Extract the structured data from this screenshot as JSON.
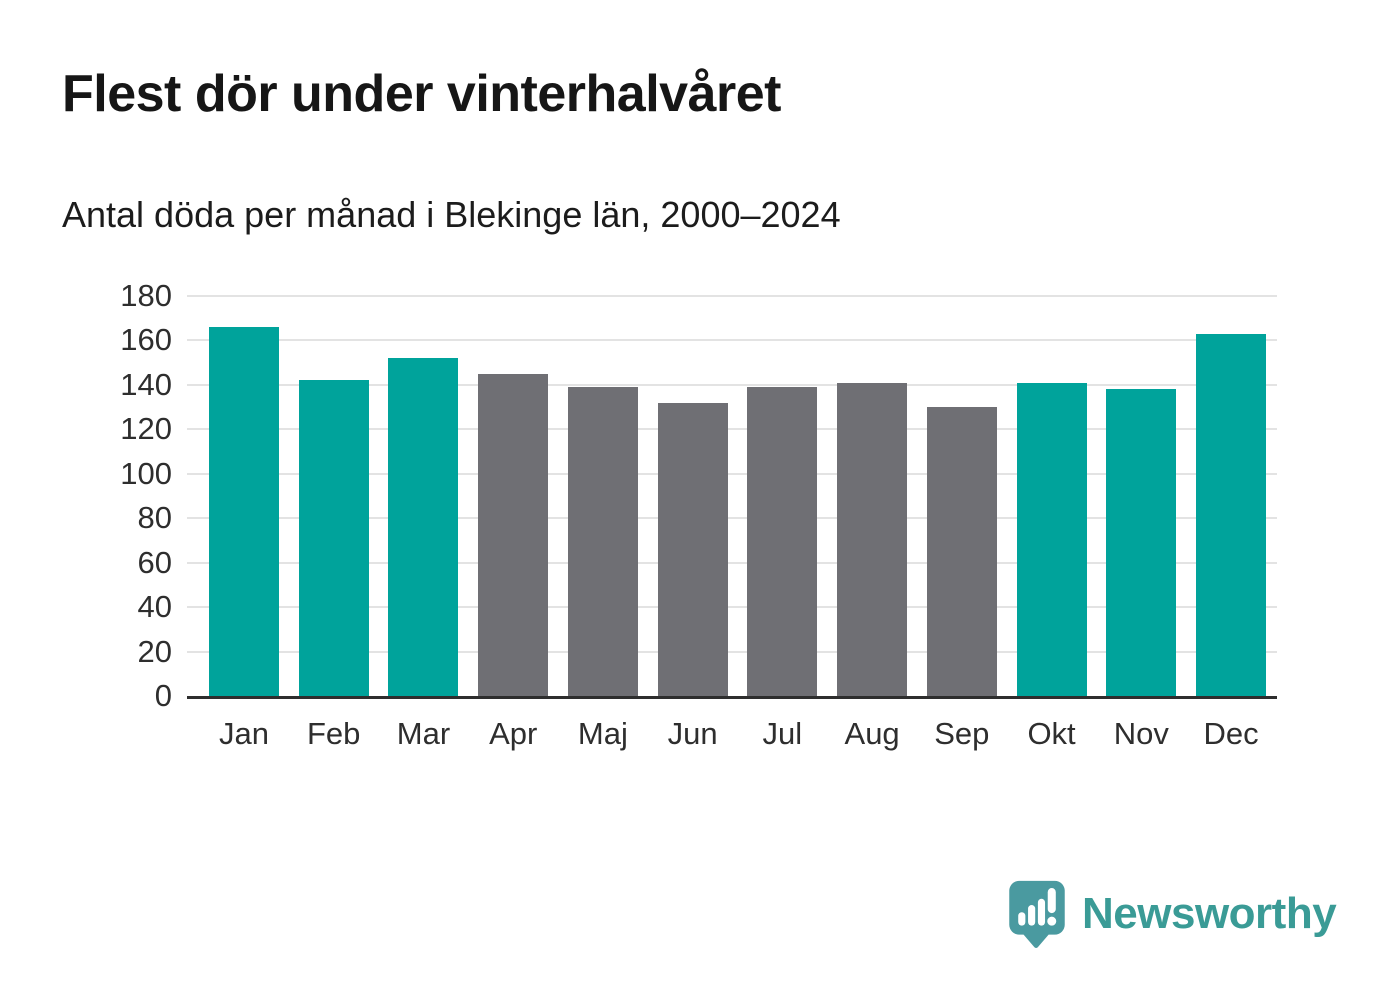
{
  "page": {
    "title": "Flest dör under vinterhalvåret",
    "subtitle": "Antal döda per månad i Blekinge län, 2000–2024"
  },
  "chart_data": {
    "type": "bar",
    "title": "Flest dör under vinterhalvåret",
    "subtitle": "Antal döda per månad i Blekinge län, 2000–2024",
    "categories": [
      "Jan",
      "Feb",
      "Mar",
      "Apr",
      "Maj",
      "Jun",
      "Jul",
      "Aug",
      "Sep",
      "Okt",
      "Nov",
      "Dec"
    ],
    "values": [
      166,
      142,
      152,
      145,
      139,
      132,
      139,
      141,
      130,
      141,
      138,
      163
    ],
    "bar_colors": [
      "#00a39b",
      "#00a39b",
      "#00a39b",
      "#6f6f74",
      "#6f6f74",
      "#6f6f74",
      "#6f6f74",
      "#6f6f74",
      "#6f6f74",
      "#00a39b",
      "#00a39b",
      "#00a39b"
    ],
    "highlight_color": "#00a39b",
    "base_color": "#6f6f74",
    "xlabel": "",
    "ylabel": "",
    "ylim": [
      0,
      180
    ],
    "yticks": [
      0,
      20,
      40,
      60,
      80,
      100,
      120,
      140,
      160,
      180
    ],
    "grid": "horizontal",
    "legend": "none",
    "gridline_color": "#e3e3e3",
    "axis_line_color": "#2e2e2e"
  },
  "branding": {
    "logo_text": "Newsworthy",
    "logo_color": "#3a9b96",
    "logo_mark_color": "#4a9aa0",
    "logo_icon": "speech-bubble-bar-chart-exclamation"
  }
}
